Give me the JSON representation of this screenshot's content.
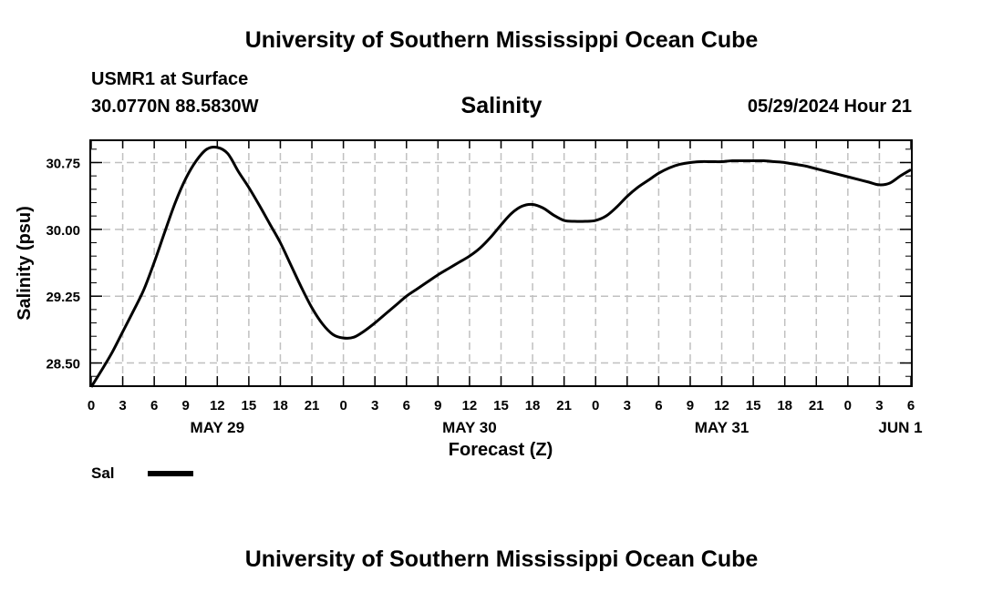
{
  "header": {
    "title": "University of Southern Mississippi Ocean Cube",
    "station": "USMR1 at Surface",
    "coords": "30.0770N  88.5830W",
    "parameter": "Salinity",
    "datetime": "05/29/2024 Hour 21"
  },
  "footer": {
    "title": "University of Southern Mississippi Ocean Cube"
  },
  "legend": {
    "label": "Sal",
    "color": "#000000"
  },
  "chart_data": {
    "type": "line",
    "title": "Salinity",
    "xlabel": "Forecast (Z)",
    "ylabel": "Salinity (psu)",
    "xlim": [
      0,
      78
    ],
    "ylim": [
      28.25,
      30.99
    ],
    "yticks": [
      28.5,
      29.25,
      30.0,
      30.75
    ],
    "ytick_labels": [
      "28.50",
      "29.25",
      "30.00",
      "30.75"
    ],
    "xtick_hours": [
      0,
      3,
      6,
      9,
      12,
      15,
      18,
      21,
      24,
      27,
      30,
      33,
      36,
      39,
      42,
      45,
      48,
      51,
      54,
      57,
      60,
      63,
      66,
      69,
      72,
      75,
      78
    ],
    "xtick_labels": [
      "0",
      "3",
      "6",
      "9",
      "12",
      "15",
      "18",
      "21",
      "0",
      "3",
      "6",
      "9",
      "12",
      "15",
      "18",
      "21",
      "0",
      "3",
      "6",
      "9",
      "12",
      "15",
      "18",
      "21",
      "0",
      "3",
      "6"
    ],
    "date_labels": [
      {
        "hour": 12,
        "label": "MAY 29"
      },
      {
        "hour": 36,
        "label": "MAY 30"
      },
      {
        "hour": 60,
        "label": "MAY 31"
      },
      {
        "hour": 77,
        "label": "JUN 1"
      }
    ],
    "series": [
      {
        "name": "Sal",
        "x": [
          0,
          1,
          2,
          3,
          4,
          5,
          6,
          7,
          8,
          9,
          10,
          11,
          12,
          13,
          14,
          15,
          16,
          17,
          18,
          19,
          20,
          21,
          22,
          23,
          24,
          25,
          26,
          27,
          28,
          29,
          30,
          31,
          32,
          33,
          34,
          35,
          36,
          37,
          38,
          39,
          40,
          41,
          42,
          43,
          44,
          45,
          46,
          47,
          48,
          49,
          50,
          51,
          52,
          53,
          54,
          55,
          56,
          57,
          58,
          59,
          60,
          61,
          62,
          63,
          64,
          65,
          66,
          67,
          68,
          69,
          70,
          71,
          72,
          73,
          74,
          75,
          76,
          77,
          78
        ],
        "values": [
          28.23,
          28.42,
          28.62,
          28.85,
          29.08,
          29.32,
          29.63,
          29.97,
          30.3,
          30.57,
          30.77,
          30.9,
          30.92,
          30.85,
          30.65,
          30.47,
          30.27,
          30.06,
          29.85,
          29.6,
          29.35,
          29.12,
          28.94,
          28.82,
          28.78,
          28.79,
          28.86,
          28.95,
          29.05,
          29.15,
          29.25,
          29.33,
          29.41,
          29.49,
          29.56,
          29.63,
          29.7,
          29.79,
          29.91,
          30.05,
          30.18,
          30.26,
          30.28,
          30.24,
          30.16,
          30.1,
          30.09,
          30.09,
          30.1,
          30.15,
          30.25,
          30.37,
          30.47,
          30.55,
          30.63,
          30.69,
          30.73,
          30.75,
          30.76,
          30.76,
          30.76,
          30.77,
          30.77,
          30.77,
          30.77,
          30.76,
          30.75,
          30.73,
          30.71,
          30.68,
          30.65,
          30.62,
          30.59,
          30.56,
          30.53,
          30.5,
          30.52,
          30.6,
          30.67
        ]
      }
    ]
  }
}
